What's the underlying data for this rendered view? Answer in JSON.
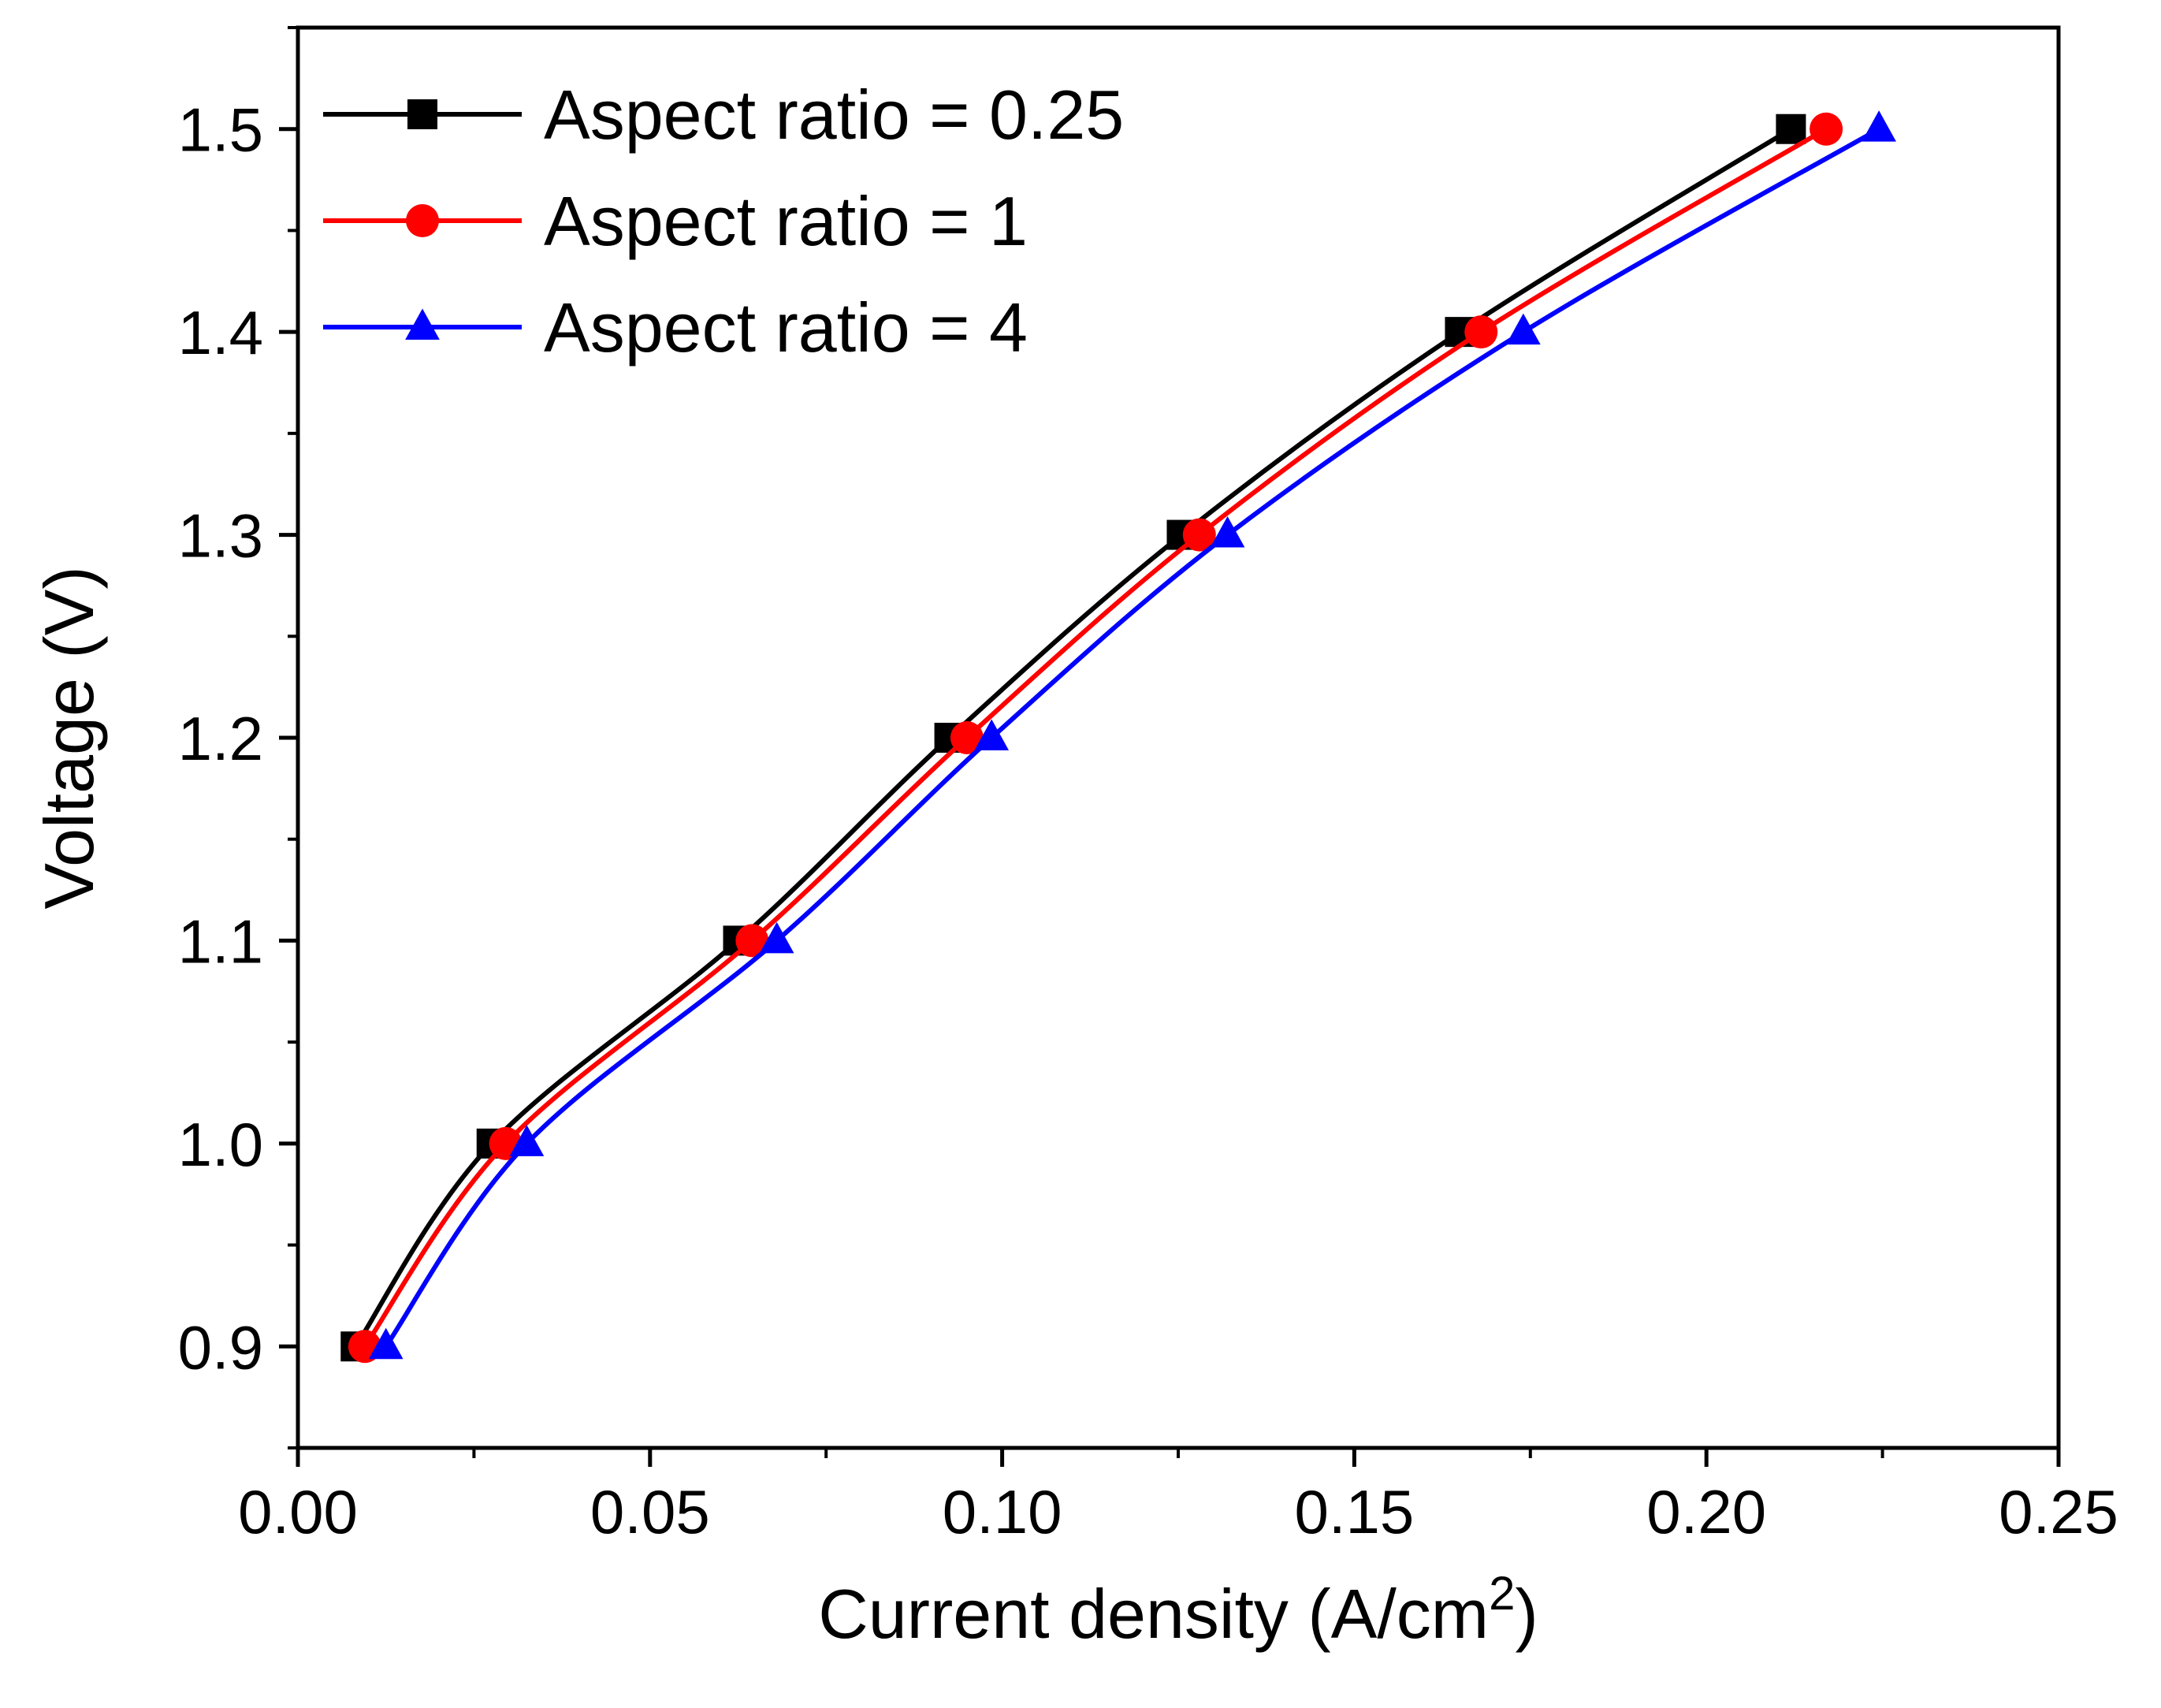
{
  "chart_data": {
    "type": "line",
    "title": "",
    "xlabel": "Current density (A/cm",
    "xlabel_superscript": "2",
    "xlabel_suffix": ")",
    "ylabel": "Voltage (V)",
    "xlim": [
      0.0,
      0.25
    ],
    "ylim": [
      0.85,
      1.55
    ],
    "xticks": [
      0.0,
      0.05,
      0.1,
      0.15,
      0.2,
      0.25
    ],
    "xtick_labels": [
      "0.00",
      "0.05",
      "0.10",
      "0.15",
      "0.20",
      "0.25"
    ],
    "yticks": [
      0.9,
      1.0,
      1.1,
      1.2,
      1.3,
      1.4,
      1.5
    ],
    "ytick_labels": [
      "0.9",
      "1.0",
      "1.1",
      "1.2",
      "1.3",
      "1.4",
      "1.5"
    ],
    "grid": false,
    "legend_position": "top-left",
    "series": [
      {
        "name": "Aspect ratio = 0.25",
        "color": "#000000",
        "marker": "square",
        "x": [
          0.0082,
          0.0275,
          0.0625,
          0.0925,
          0.1255,
          0.165,
          0.212
        ],
        "y": [
          0.9,
          1.0,
          1.1,
          1.2,
          1.3,
          1.4,
          1.5
        ]
      },
      {
        "name": "Aspect ratio = 1",
        "color": "#ff0000",
        "marker": "circle",
        "x": [
          0.0095,
          0.0295,
          0.0645,
          0.095,
          0.128,
          0.168,
          0.217
        ],
        "y": [
          0.9,
          1.0,
          1.1,
          1.2,
          1.3,
          1.4,
          1.5
        ]
      },
      {
        "name": "Aspect ratio = 4",
        "color": "#0000ff",
        "marker": "triangle",
        "x": [
          0.0125,
          0.0325,
          0.068,
          0.0985,
          0.132,
          0.174,
          0.2245
        ],
        "y": [
          0.9,
          1.0,
          1.1,
          1.2,
          1.3,
          1.4,
          1.5
        ]
      }
    ]
  }
}
